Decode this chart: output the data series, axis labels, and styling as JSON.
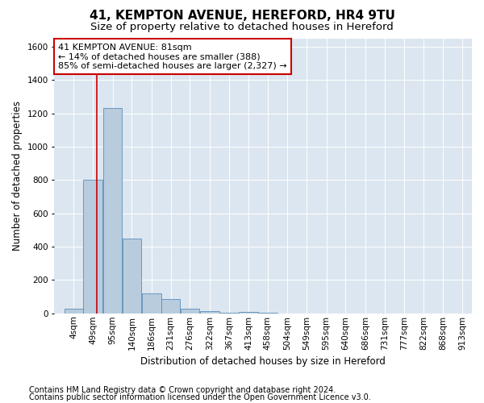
{
  "title1": "41, KEMPTON AVENUE, HEREFORD, HR4 9TU",
  "title2": "Size of property relative to detached houses in Hereford",
  "xlabel": "Distribution of detached houses by size in Hereford",
  "ylabel": "Number of detached properties",
  "footnote1": "Contains HM Land Registry data © Crown copyright and database right 2024.",
  "footnote2": "Contains public sector information licensed under the Open Government Licence v3.0.",
  "annotation_line1": "41 KEMPTON AVENUE: 81sqm",
  "annotation_line2": "← 14% of detached houses are smaller (388)",
  "annotation_line3": "85% of semi-detached houses are larger (2,327) →",
  "bar_color": "#b8ccde",
  "bar_edge_color": "#5b8db8",
  "vline_color": "#cc0000",
  "vline_x": 81,
  "background_color": "#dce6f0",
  "bins_left": [
    4,
    49,
    95,
    140,
    186,
    231,
    276,
    322,
    367,
    413,
    458,
    504,
    549,
    595,
    640,
    686,
    731,
    777,
    822,
    868
  ],
  "bin_labels": [
    "4sqm",
    "49sqm",
    "95sqm",
    "140sqm",
    "186sqm",
    "231sqm",
    "276sqm",
    "322sqm",
    "367sqm",
    "413sqm",
    "458sqm",
    "504sqm",
    "549sqm",
    "595sqm",
    "640sqm",
    "686sqm",
    "731sqm",
    "777sqm",
    "822sqm",
    "868sqm",
    "913sqm"
  ],
  "bar_heights": [
    30,
    800,
    1230,
    450,
    120,
    85,
    30,
    15,
    5,
    8,
    5,
    0,
    0,
    0,
    0,
    0,
    0,
    0,
    0,
    0
  ],
  "bin_width": 45,
  "ylim": [
    0,
    1650
  ],
  "yticks": [
    0,
    200,
    400,
    600,
    800,
    1000,
    1200,
    1400,
    1600
  ],
  "grid_color": "#ffffff",
  "title1_fontsize": 11,
  "title2_fontsize": 9.5,
  "axis_label_fontsize": 8.5,
  "tick_fontsize": 7.5,
  "annotation_fontsize": 8,
  "footnote_fontsize": 7
}
